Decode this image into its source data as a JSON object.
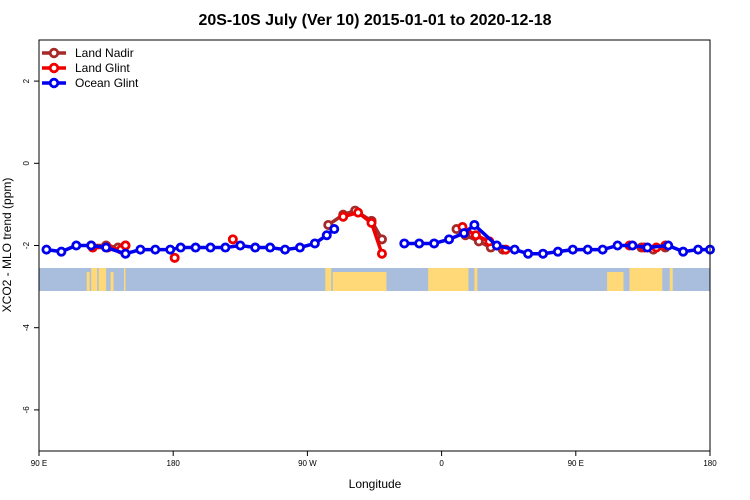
{
  "chart_data": {
    "type": "line",
    "title": "20S-10S July (Ver 10)   2015-01-01 to 2020-12-18",
    "xlabel": "Longitude",
    "ylabel": "XCO2 - MLO trend (ppm)",
    "xlim": [
      90,
      540
    ],
    "ylim": [
      -7,
      3
    ],
    "x_ticks": [
      {
        "value": 90,
        "label": "90 E"
      },
      {
        "value": 180,
        "label": "180"
      },
      {
        "value": 270,
        "label": "90 W"
      },
      {
        "value": 360,
        "label": "0"
      },
      {
        "value": 450,
        "label": "90 E"
      },
      {
        "value": 540,
        "label": "180"
      }
    ],
    "y_ticks": [
      {
        "value": 2,
        "label": "2"
      },
      {
        "value": 0,
        "label": "0"
      },
      {
        "value": -2,
        "label": "-2"
      },
      {
        "value": -4,
        "label": "-4"
      },
      {
        "value": -6,
        "label": "-6"
      }
    ],
    "legend_position": "top-left",
    "grid": false,
    "colors": {
      "ocean_band": "#a8bedc",
      "land_band": "#ffd978"
    },
    "land_segments": [
      [
        122,
        124
      ],
      [
        125,
        129
      ],
      [
        130,
        135
      ],
      [
        138,
        140
      ],
      [
        147,
        148
      ],
      [
        282,
        286
      ],
      [
        287,
        323
      ],
      [
        351,
        378
      ],
      [
        382,
        384
      ],
      [
        471,
        482
      ],
      [
        486,
        508
      ],
      [
        513,
        515
      ]
    ],
    "series": [
      {
        "name": "Land Nadir",
        "color": "#a52a2a",
        "x": [
          125,
          135,
          143,
          148,
          284,
          294,
          302,
          313,
          320,
          370,
          376,
          385,
          393,
          401,
          494,
          502,
          510
        ],
        "y": [
          -2.0,
          -2.0,
          -2.05,
          -2.0,
          -1.5,
          -1.25,
          -1.15,
          -1.4,
          -1.85,
          -1.6,
          -1.75,
          -1.9,
          -2.05,
          -2.1,
          -2.05,
          -2.1,
          -2.05
        ]
      },
      {
        "name": "Land Glint",
        "color": "#ee0000",
        "x": [
          126,
          136,
          145,
          148,
          181,
          220,
          294,
          304,
          313,
          320,
          374,
          383,
          392,
          403,
          486,
          496,
          504,
          510
        ],
        "y": [
          -2.05,
          -2.05,
          -2.1,
          -2.0,
          -2.3,
          -1.85,
          -1.3,
          -1.2,
          -1.45,
          -2.2,
          -1.55,
          -1.75,
          -1.9,
          -2.1,
          -2.0,
          -2.05,
          -2.05,
          -2.0
        ]
      },
      {
        "name": "Ocean Glint",
        "color": "#0000ee",
        "x": [
          95,
          105,
          115,
          125,
          135,
          148,
          158,
          168,
          178,
          185,
          195,
          205,
          215,
          225,
          235,
          245,
          255,
          265,
          275,
          283,
          288,
          335,
          345,
          355,
          365,
          375,
          382,
          397,
          409,
          418,
          428,
          438,
          448,
          458,
          468,
          478,
          488,
          498,
          512,
          522,
          532,
          540
        ],
        "y": [
          -2.1,
          -2.15,
          -2.0,
          -2.0,
          -2.05,
          -2.2,
          -2.1,
          -2.1,
          -2.1,
          -2.05,
          -2.05,
          -2.05,
          -2.05,
          -2.0,
          -2.05,
          -2.05,
          -2.1,
          -2.05,
          -1.95,
          -1.75,
          -1.6,
          -1.95,
          -1.95,
          -1.95,
          -1.85,
          -1.7,
          -1.5,
          -2.0,
          -2.1,
          -2.2,
          -2.2,
          -2.15,
          -2.1,
          -2.1,
          -2.1,
          -2.0,
          -2.0,
          -2.05,
          -2.0,
          -2.15,
          -2.1,
          -2.1
        ]
      }
    ]
  }
}
